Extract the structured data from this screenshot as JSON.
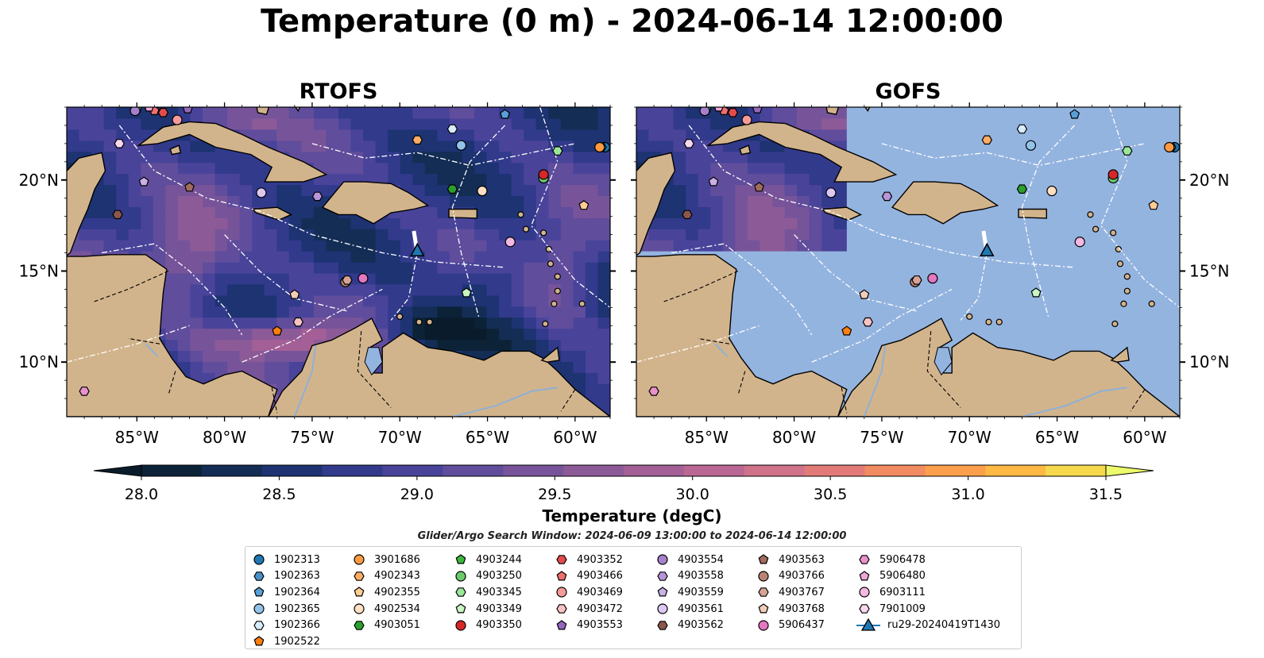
{
  "figure": {
    "title": "Temperature (0 m) - 2024-06-14 12:00:00",
    "search_window": "Glider/Argo Search Window: 2024-06-09 13:00:00 to 2024-06-14 12:00:00"
  },
  "chart_data": {
    "type": "heatmap",
    "panels": [
      {
        "name": "RTOFS",
        "field": "full"
      },
      {
        "name": "GOFS",
        "field": "partial"
      }
    ],
    "xlim": [
      -89,
      -58
    ],
    "ylim": [
      7,
      24
    ],
    "x_ticks": [
      {
        "value": -85,
        "label": "85°W"
      },
      {
        "value": -80,
        "label": "80°W"
      },
      {
        "value": -75,
        "label": "75°W"
      },
      {
        "value": -70,
        "label": "70°W"
      },
      {
        "value": -65,
        "label": "65°W"
      },
      {
        "value": -60,
        "label": "60°W"
      }
    ],
    "y_ticks": [
      {
        "value": 10,
        "label": "10°N"
      },
      {
        "value": 15,
        "label": "15°N"
      },
      {
        "value": 20,
        "label": "20°N"
      }
    ],
    "colorbar": {
      "label": "Temperature (degC)",
      "min": 28.0,
      "max": 31.5,
      "step": 0.25,
      "ticks": [
        "28.0",
        "28.5",
        "29.0",
        "29.5",
        "30.0",
        "30.5",
        "31.0",
        "31.5"
      ],
      "colors": [
        "#0c2237",
        "#142d55",
        "#1d3372",
        "#323a8c",
        "#49449a",
        "#604d9c",
        "#77549a",
        "#8d5a98",
        "#a46096",
        "#ba6893",
        "#d0728a",
        "#e27b78",
        "#f28b61",
        "#fb9f4d",
        "#fdb944",
        "#f6d84d"
      ],
      "under_color": "#0a1c2c",
      "over_color": "#ebfb6c"
    },
    "glider": {
      "name": "ru29-20240419T1430",
      "lon": -69,
      "lat": 16.1,
      "track": [
        [
          -69.2,
          17.2
        ],
        [
          -69.05,
          16.3
        ]
      ]
    },
    "floats": [
      {
        "id": "1902313",
        "marker": "circle",
        "color": "#1f77b4",
        "lon": -58.3,
        "lat": 21.8
      },
      {
        "id": "1902363",
        "marker": "hexagon",
        "color": "#4a8fc7",
        "lon": -58.5,
        "lat": 21.8
      },
      {
        "id": "1902364",
        "marker": "pentagon",
        "color": "#5a9fd6",
        "lon": -64.0,
        "lat": 23.6
      },
      {
        "id": "1902365",
        "marker": "circle",
        "color": "#92c3ea",
        "lon": -66.5,
        "lat": 21.9
      },
      {
        "id": "1902366",
        "marker": "hexagon",
        "color": "#d6ecfa",
        "lon": -67.0,
        "lat": 22.8
      },
      {
        "id": "1902522",
        "marker": "pentagon",
        "color": "#ff7f0e",
        "lon": -77.0,
        "lat": 11.7
      },
      {
        "id": "3901686",
        "marker": "circle",
        "color": "#ff9a40",
        "lon": -58.6,
        "lat": 21.8
      },
      {
        "id": "4902343",
        "marker": "hexagon",
        "color": "#ffad66",
        "lon": -69.0,
        "lat": 22.2
      },
      {
        "id": "4902355",
        "marker": "pentagon",
        "color": "#ffcd94",
        "lon": -59.5,
        "lat": 18.6
      },
      {
        "id": "4902534",
        "marker": "circle",
        "color": "#ffe0c2",
        "lon": -65.3,
        "lat": 19.4
      },
      {
        "id": "4903051",
        "marker": "hexagon",
        "color": "#2ca02c",
        "lon": -67.0,
        "lat": 19.5
      },
      {
        "id": "4903244",
        "marker": "pentagon",
        "color": "#3cb93c",
        "lon": -85.0,
        "lat": 23.9
      },
      {
        "id": "4903250",
        "marker": "circle",
        "color": "#6ccc6c",
        "lon": -61.8,
        "lat": 20.1
      },
      {
        "id": "4903345",
        "marker": "hexagon",
        "color": "#9ae69a",
        "lon": -61.0,
        "lat": 21.6
      },
      {
        "id": "4903349",
        "marker": "pentagon",
        "color": "#c9f5c2",
        "lon": -66.2,
        "lat": 13.8
      },
      {
        "id": "4903350",
        "marker": "circle",
        "color": "#d62728",
        "lon": -61.8,
        "lat": 20.3
      },
      {
        "id": "4903352",
        "marker": "hexagon",
        "color": "#e44a4a",
        "lon": -83.5,
        "lat": 23.7
      },
      {
        "id": "4903466",
        "marker": "pentagon",
        "color": "#ef6f6f",
        "lon": -84.0,
        "lat": 23.8
      },
      {
        "id": "4903469",
        "marker": "circle",
        "color": "#f59a9a",
        "lon": -82.7,
        "lat": 23.3
      },
      {
        "id": "4903472",
        "marker": "hexagon",
        "color": "#f9c3c3",
        "lon": -75.8,
        "lat": 12.2
      },
      {
        "id": "4903553",
        "marker": "pentagon",
        "color": "#9467bd",
        "lon": -82.1,
        "lat": 23.9
      },
      {
        "id": "4903554",
        "marker": "circle",
        "color": "#a680cc",
        "lon": -85.1,
        "lat": 23.8
      },
      {
        "id": "4903558",
        "marker": "hexagon",
        "color": "#b795d8",
        "lon": -74.7,
        "lat": 19.1
      },
      {
        "id": "4903559",
        "marker": "pentagon",
        "color": "#cbb0e6",
        "lon": -84.6,
        "lat": 19.9
      },
      {
        "id": "4903561",
        "marker": "circle",
        "color": "#dcc8f2",
        "lon": -77.9,
        "lat": 19.3
      },
      {
        "id": "4903562",
        "marker": "hexagon",
        "color": "#8c564b",
        "lon": -86.1,
        "lat": 18.1
      },
      {
        "id": "4903563",
        "marker": "pentagon",
        "color": "#a06c5f",
        "lon": -82.0,
        "lat": 19.6
      },
      {
        "id": "4903766",
        "marker": "circle",
        "color": "#b98474",
        "lon": -73.1,
        "lat": 14.4
      },
      {
        "id": "4903767",
        "marker": "hexagon",
        "color": "#d6a496",
        "lon": -73.0,
        "lat": 14.5
      },
      {
        "id": "4903768",
        "marker": "pentagon",
        "color": "#f2cdb8",
        "lon": -76.0,
        "lat": 13.7
      },
      {
        "id": "5906437",
        "marker": "circle",
        "color": "#e377c2",
        "lon": -72.1,
        "lat": 14.6
      },
      {
        "id": "5906478",
        "marker": "hexagon",
        "color": "#e892cc",
        "lon": -88.0,
        "lat": 8.4
      },
      {
        "id": "5906480",
        "marker": "pentagon",
        "color": "#eda8d8",
        "lon": -84.3,
        "lat": 24.0
      },
      {
        "id": "6903111",
        "marker": "circle",
        "color": "#f4b8e2",
        "lon": -63.7,
        "lat": 16.6
      },
      {
        "id": "7901009",
        "marker": "hexagon",
        "color": "#f9d8ef",
        "lon": -86.0,
        "lat": 22.0
      }
    ]
  },
  "legend": {
    "glider_label": "ru29-20240419T1430"
  }
}
